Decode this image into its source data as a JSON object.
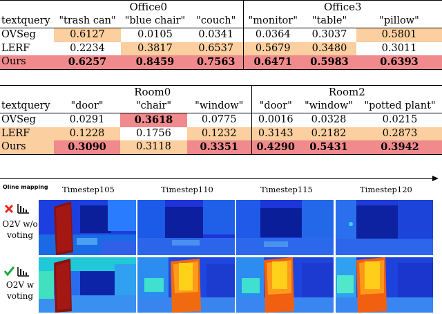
{
  "table1": {
    "groups": [
      "Office0",
      "Office3"
    ],
    "header_label": "textquery",
    "queries": [
      "\"trash can\"",
      "\"blue chair\"",
      "\"couch\"",
      "\"monitor\"",
      "\"table\"",
      "\"pillow\""
    ],
    "rows": [
      {
        "method": "OVSeg",
        "values": [
          "0.6127",
          "0.0105",
          "0.0341",
          "0.0364",
          "0.3037",
          "0.5801"
        ]
      },
      {
        "method": "LERF",
        "values": [
          "0.2234",
          "0.3817",
          "0.6537",
          "0.5679",
          "0.3480",
          "0.3011"
        ]
      },
      {
        "method": "Ours",
        "values": [
          "0.6257",
          "0.8459",
          "0.7563",
          "0.6471",
          "0.5983",
          "0.6393"
        ]
      }
    ]
  },
  "table2": {
    "groups": [
      "Room0",
      "Room2"
    ],
    "header_label": "textquery",
    "queries": [
      "\"door\"",
      "\"chair\"",
      "\"window\"",
      "\"door\"",
      "\"window\"",
      "\"potted plant\""
    ],
    "rows": [
      {
        "method": "OVSeg",
        "values": [
          "0.0291",
          "0.3618",
          "0.0775",
          "0.0016",
          "0.0328",
          "0.0215"
        ]
      },
      {
        "method": "LERF",
        "values": [
          "0.1228",
          "0.1756",
          "0.1232",
          "0.3143",
          "0.2182",
          "0.2873"
        ]
      },
      {
        "method": "Ours",
        "values": [
          "0.3090",
          "0.3118",
          "0.3351",
          "0.4290",
          "0.5431",
          "0.3942"
        ]
      }
    ]
  },
  "highlight_colors": {
    "best": "#f08a8c",
    "second": "#fbcf9f"
  },
  "figure": {
    "arrow_label": "Oline mapping",
    "timesteps": [
      "Timestep105",
      "Timestep110",
      "Timestep115",
      "Timestep120"
    ],
    "methods": [
      {
        "line1": "O2V w/o",
        "line2": "voting",
        "mark_icon": "cross-icon",
        "mark_color": "#e8231b"
      },
      {
        "line1": "O2V w",
        "line2": "voting",
        "mark_icon": "check-icon",
        "mark_color": "#1fa83a"
      }
    ],
    "chart_icon": "bar-chart-icon"
  }
}
